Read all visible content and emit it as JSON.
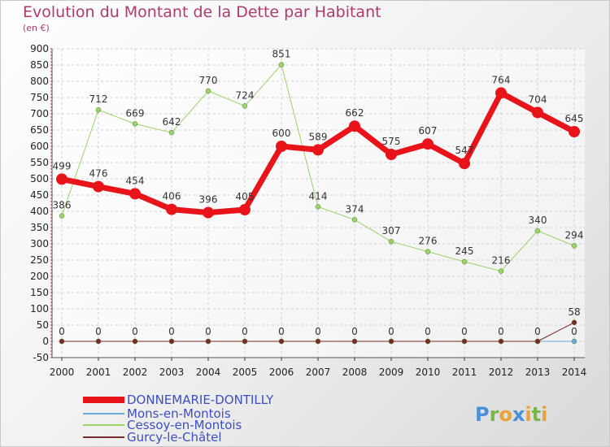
{
  "header": {
    "title": "Evolution du Montant de la Dette par Habitant",
    "subtitle": "(en €)"
  },
  "colors": {
    "title": "#b03a6e",
    "legend_text": "#3b4fc4",
    "grid": "#d0d0d0"
  },
  "logo": {
    "letters": [
      "P",
      "r",
      "o",
      "x",
      "i",
      "t",
      "i"
    ],
    "colors": [
      "#4a90d9",
      "#7ab648",
      "#e8a33a",
      "#4a90d9",
      "#e8a33a",
      "#7ab648",
      "#e8a33a"
    ]
  },
  "chart_data": {
    "type": "line",
    "title": "Evolution du Montant de la Dette par Habitant",
    "ylabel": "(en €)",
    "xlabel": "",
    "ylim": [
      -50,
      900
    ],
    "yticks": [
      -50,
      0,
      50,
      100,
      150,
      200,
      250,
      300,
      350,
      400,
      450,
      500,
      550,
      600,
      650,
      700,
      750,
      800,
      850,
      900
    ],
    "categories": [
      "2000",
      "2001",
      "2002",
      "2003",
      "2004",
      "2005",
      "2006",
      "2007",
      "2008",
      "2009",
      "2010",
      "2011",
      "2012",
      "2013",
      "2014"
    ],
    "grid": true,
    "legend_position": "bottom-left",
    "series": [
      {
        "name": "DONNEMARIE-DONTILLY",
        "color": "#e8141a",
        "width": 7,
        "marker": 7,
        "values": [
          499,
          476,
          454,
          406,
          396,
          405,
          600,
          589,
          662,
          575,
          607,
          547,
          764,
          704,
          645
        ],
        "labels": [
          "499",
          "476",
          "454",
          "406",
          "396",
          "405",
          "600",
          "589",
          "662",
          "575",
          "607",
          "547",
          "764",
          "704",
          "645"
        ]
      },
      {
        "name": "Mons-en-Montois",
        "color": "#6aa8d8",
        "width": 1,
        "marker": 3,
        "values": [
          0,
          0,
          0,
          0,
          0,
          0,
          0,
          0,
          0,
          0,
          0,
          0,
          0,
          0,
          0
        ],
        "labels": [
          "0",
          "0",
          "0",
          "0",
          "0",
          "0",
          "0",
          "0",
          "0",
          "0",
          "0",
          "0",
          "0",
          "0",
          "0"
        ]
      },
      {
        "name": "Cessoy-en-Montois",
        "color": "#9ad46a",
        "width": 1,
        "marker": 3,
        "values": [
          386,
          712,
          669,
          642,
          770,
          724,
          851,
          414,
          374,
          307,
          276,
          245,
          216,
          340,
          294
        ],
        "labels": [
          "386",
          "712",
          "669",
          "642",
          "770",
          "724",
          "851",
          "414",
          "374",
          "307",
          "276",
          "245",
          "216",
          "340",
          "294"
        ]
      },
      {
        "name": "Gurcy-le-Châtel",
        "color": "#7a2a2a",
        "width": 1,
        "marker": 3,
        "values": [
          0,
          0,
          0,
          0,
          0,
          0,
          0,
          0,
          0,
          0,
          0,
          0,
          0,
          0,
          58
        ],
        "labels": [
          "0",
          "0",
          "0",
          "0",
          "0",
          "0",
          "0",
          "0",
          "0",
          "0",
          "0",
          "0",
          "0",
          "0",
          "58"
        ]
      }
    ]
  }
}
